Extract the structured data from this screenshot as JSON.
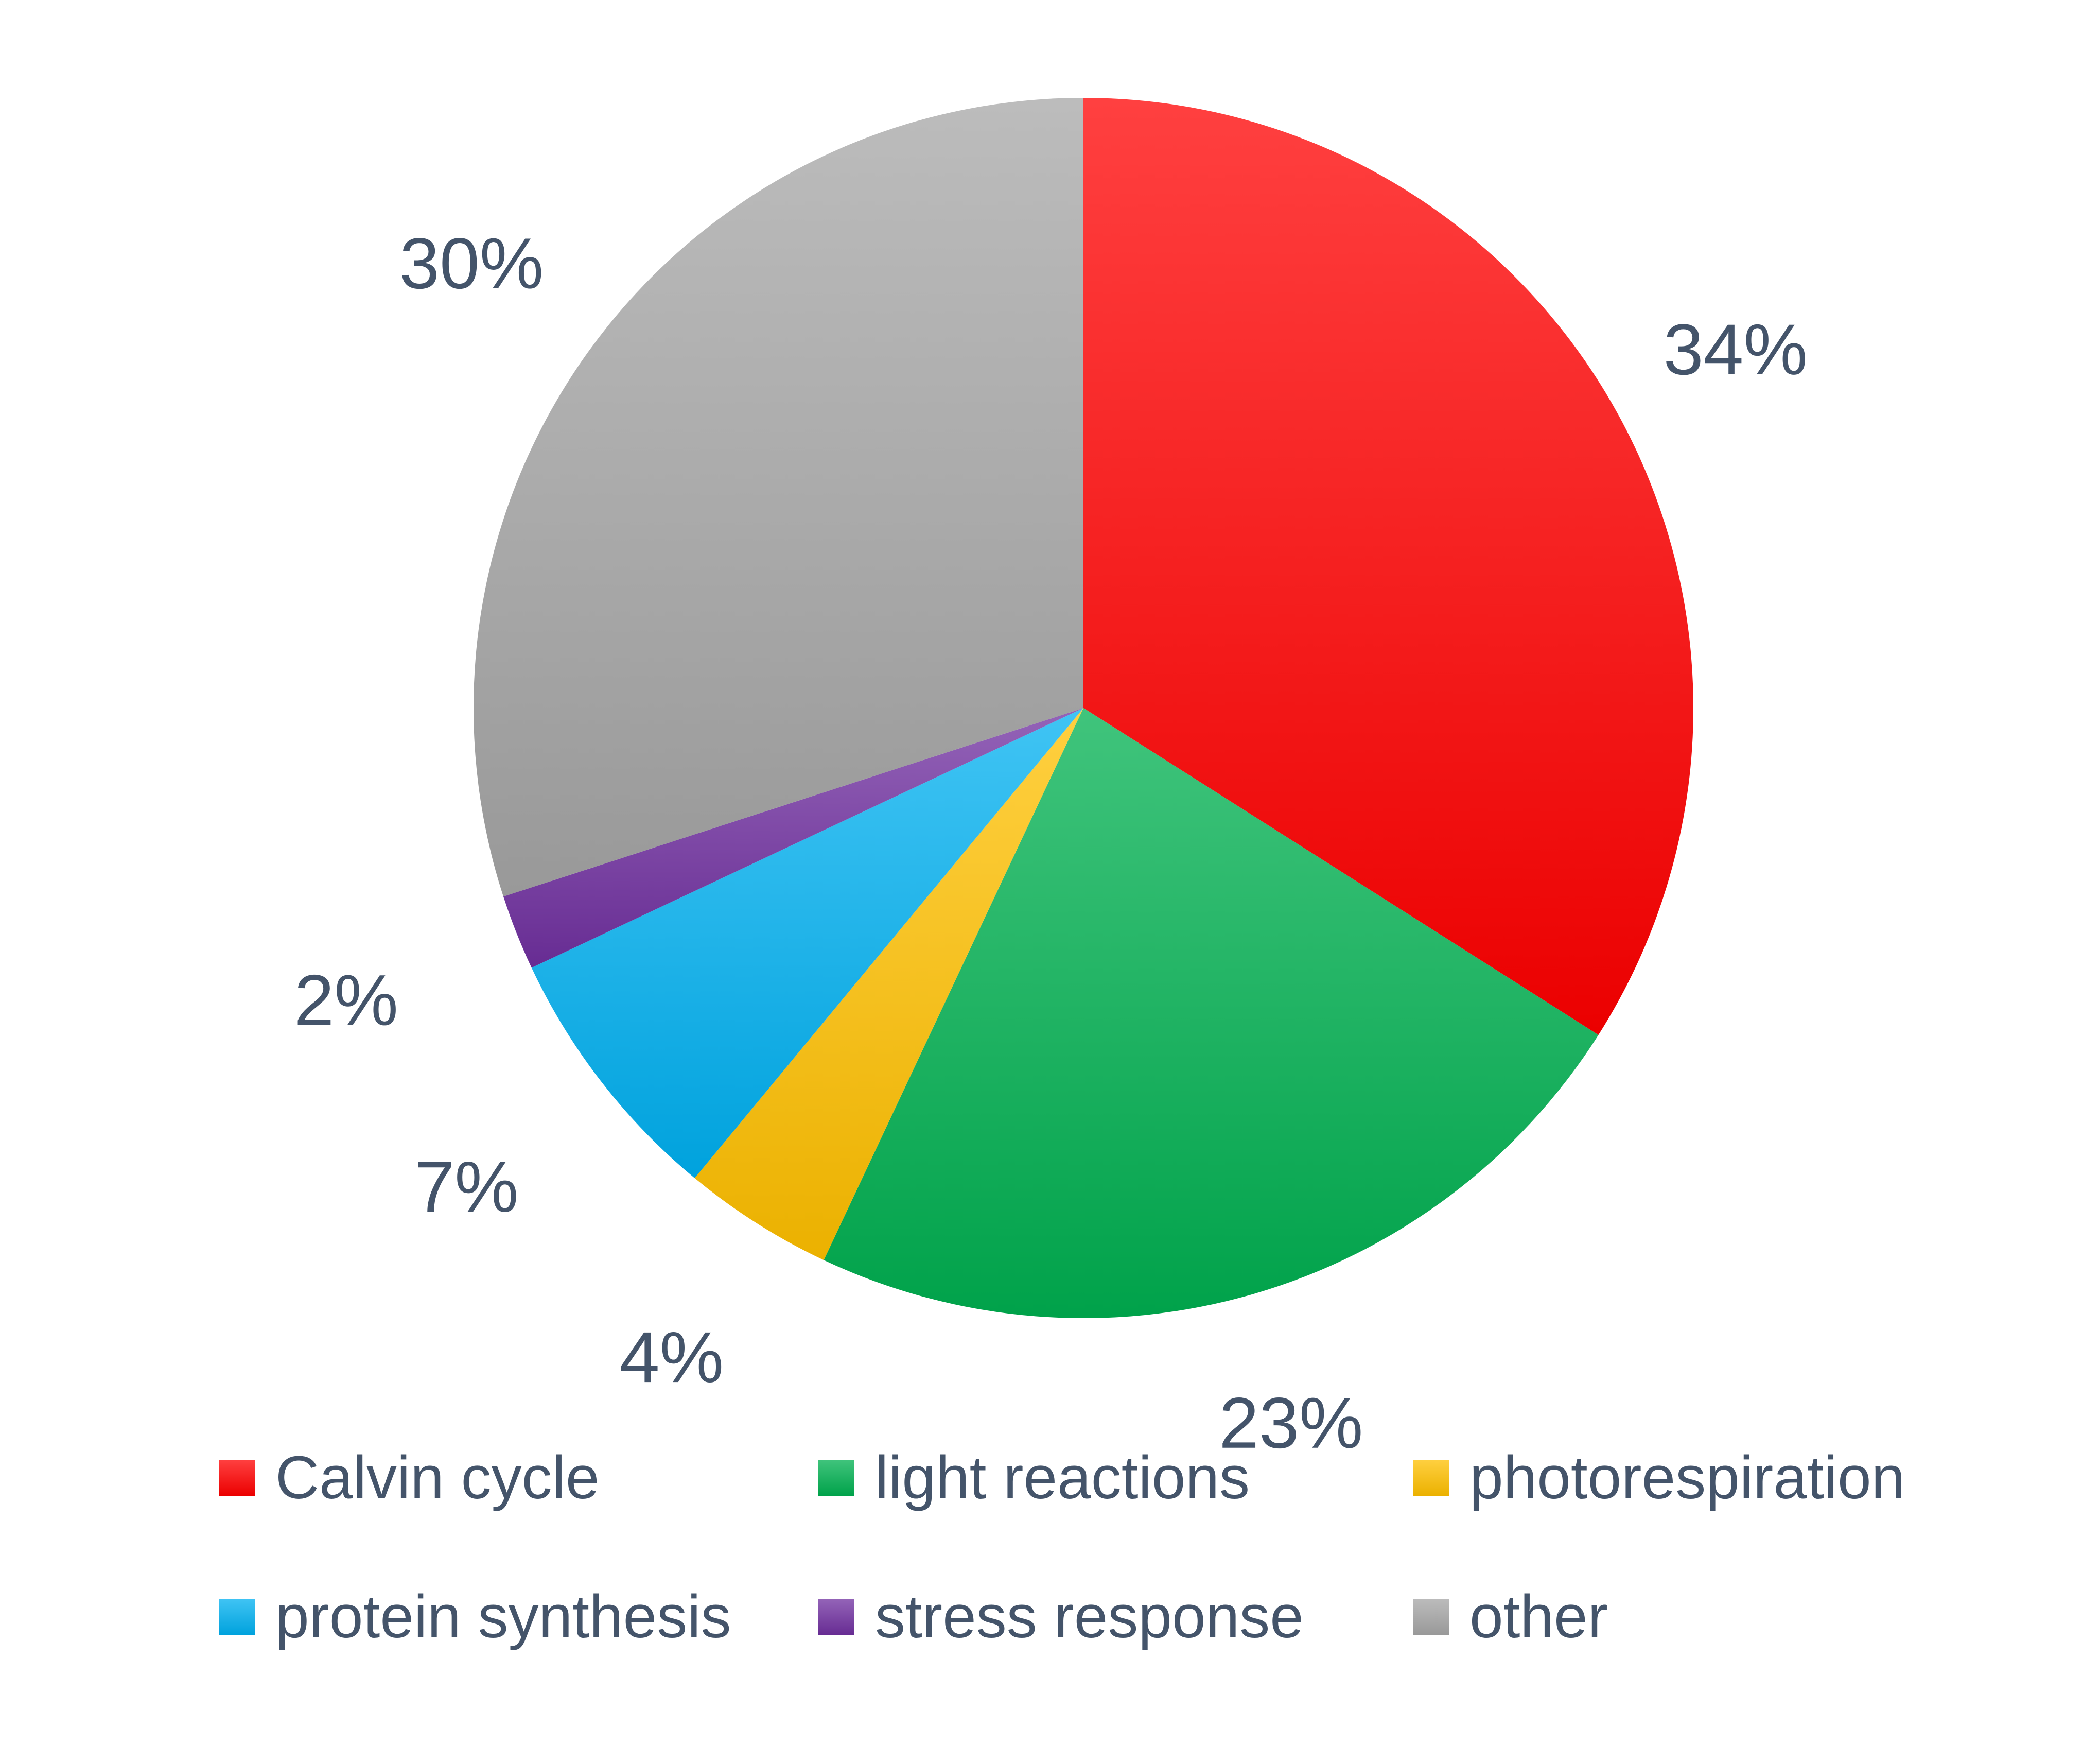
{
  "chart_data": {
    "type": "pie",
    "title": "",
    "legend_placement": "bottom",
    "series": [
      {
        "values": [
          34,
          23,
          4,
          7,
          2,
          30
        ],
        "labels": [
          "34%",
          "23%",
          "4%",
          "7%",
          "2%",
          "30%"
        ]
      }
    ],
    "categories": [
      "Calvin cycle",
      "light reactions",
      "photorespiration",
      "protein synthesis",
      "stress response",
      "other"
    ],
    "colors": [
      "#ff0000",
      "#00b050",
      "#ffc000",
      "#00b0f0",
      "#7030a0",
      "#a6a6a6"
    ]
  }
}
